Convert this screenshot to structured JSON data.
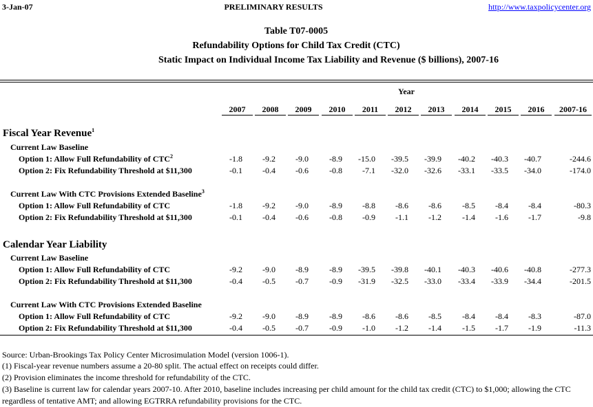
{
  "header": {
    "date": "3-Jan-07",
    "status": "PRELIMINARY RESULTS",
    "url": "http://www.taxpolicycenter.org"
  },
  "titles": [
    "Table T07-0005",
    "Refundability Options for Child Tax Credit (CTC)",
    "Static Impact on Individual Income Tax Liability and Revenue ($ billions), 2007-16"
  ],
  "table": {
    "year_label": "Year",
    "columns": [
      "2007",
      "2008",
      "2009",
      "2010",
      "2011",
      "2012",
      "2013",
      "2014",
      "2015",
      "2016",
      "2007-16"
    ],
    "sections": [
      {
        "title": "Fiscal Year Revenue",
        "title_note": "1",
        "groups": [
          {
            "title": "Current Law Baseline",
            "rows": [
              {
                "label": "Option 1: Allow Full Refundability of CTC",
                "label_note": "2",
                "values": [
                  "-1.8",
                  "-9.2",
                  "-9.0",
                  "-8.9",
                  "-15.0",
                  "-39.5",
                  "-39.9",
                  "-40.2",
                  "-40.3",
                  "-40.7",
                  "-244.6"
                ]
              },
              {
                "label": "Option 2: Fix Refundability Threshold at $11,300",
                "values": [
                  "-0.1",
                  "-0.4",
                  "-0.6",
                  "-0.8",
                  "-7.1",
                  "-32.0",
                  "-32.6",
                  "-33.1",
                  "-33.5",
                  "-34.0",
                  "-174.0"
                ]
              }
            ]
          },
          {
            "title": "Current Law With CTC Provisions Extended Baseline",
            "title_note": "3",
            "rows": [
              {
                "label": "Option 1: Allow Full Refundability of CTC",
                "values": [
                  "-1.8",
                  "-9.2",
                  "-9.0",
                  "-8.9",
                  "-8.8",
                  "-8.6",
                  "-8.6",
                  "-8.5",
                  "-8.4",
                  "-8.4",
                  "-80.3"
                ]
              },
              {
                "label": "Option 2: Fix Refundability Threshold at $11,300",
                "values": [
                  "-0.1",
                  "-0.4",
                  "-0.6",
                  "-0.8",
                  "-0.9",
                  "-1.1",
                  "-1.2",
                  "-1.4",
                  "-1.6",
                  "-1.7",
                  "-9.8"
                ]
              }
            ]
          }
        ]
      },
      {
        "title": "Calendar Year Liability",
        "groups": [
          {
            "title": "Current Law Baseline",
            "rows": [
              {
                "label": "Option 1: Allow Full Refundability of CTC",
                "values": [
                  "-9.2",
                  "-9.0",
                  "-8.9",
                  "-8.9",
                  "-39.5",
                  "-39.8",
                  "-40.1",
                  "-40.3",
                  "-40.6",
                  "-40.8",
                  "-277.3"
                ]
              },
              {
                "label": "Option 2: Fix Refundability Threshold at $11,300",
                "values": [
                  "-0.4",
                  "-0.5",
                  "-0.7",
                  "-0.9",
                  "-31.9",
                  "-32.5",
                  "-33.0",
                  "-33.4",
                  "-33.9",
                  "-34.4",
                  "-201.5"
                ]
              }
            ]
          },
          {
            "title": "Current Law With CTC Provisions Extended Baseline",
            "rows": [
              {
                "label": "Option 1: Allow Full Refundability of CTC",
                "values": [
                  "-9.2",
                  "-9.0",
                  "-8.9",
                  "-8.9",
                  "-8.6",
                  "-8.6",
                  "-8.5",
                  "-8.4",
                  "-8.4",
                  "-8.3",
                  "-87.0"
                ]
              },
              {
                "label": "Option 2: Fix Refundability Threshold at $11,300",
                "values": [
                  "-0.4",
                  "-0.5",
                  "-0.7",
                  "-0.9",
                  "-1.0",
                  "-1.2",
                  "-1.4",
                  "-1.5",
                  "-1.7",
                  "-1.9",
                  "-11.3"
                ]
              }
            ]
          }
        ]
      }
    ]
  },
  "notes": [
    "Source: Urban-Brookings Tax Policy Center Microsimulation Model (version 1006-1).",
    "(1) Fiscal-year revenue numbers assume a 20-80 split. The actual effect on receipts could differ.",
    "(2) Provision eliminates the income threshold for refundability of the CTC.",
    "(3) Baseline is current law for calendar years 2007-10.  After 2010, baseline includes increasing per child amount for the child tax credit (CTC) to $1,000; allowing the CTC regardless of tentative AMT; and allowing EGTRRA refundability provisions for the CTC."
  ]
}
